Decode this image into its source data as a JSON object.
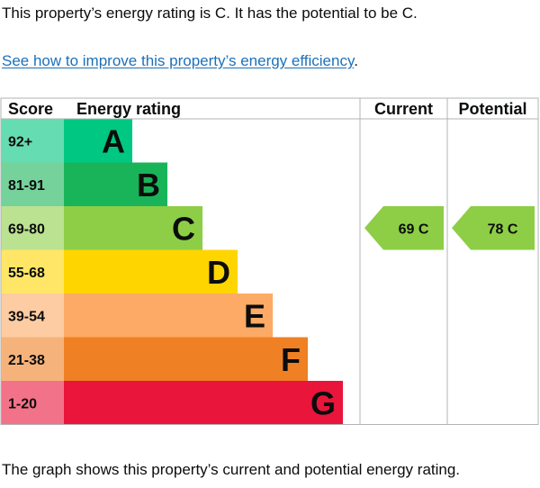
{
  "intro_text": "This property’s energy rating is C. It has the potential to be C.",
  "link": {
    "text": "See how to improve this property’s energy efficiency",
    "suffix": "."
  },
  "caption": "The graph shows this property’s current and potential energy rating.",
  "chart_data": {
    "type": "bar",
    "title": "Energy rating",
    "headers": {
      "score": "Score",
      "rating": "Energy rating",
      "current": "Current",
      "potential": "Potential"
    },
    "bands": [
      {
        "score": "92+",
        "letter": "A",
        "color": "#00c781",
        "score_bg": "#66dcb3"
      },
      {
        "score": "81-91",
        "letter": "B",
        "color": "#19b459",
        "score_bg": "#75d29b"
      },
      {
        "score": "69-80",
        "letter": "C",
        "color": "#8dce46",
        "score_bg": "#bbe290"
      },
      {
        "score": "55-68",
        "letter": "D",
        "color": "#ffd500",
        "score_bg": "#ffe666"
      },
      {
        "score": "39-54",
        "letter": "E",
        "color": "#fcaa65",
        "score_bg": "#fdcca3"
      },
      {
        "score": "21-38",
        "letter": "F",
        "color": "#ef8023",
        "score_bg": "#f5b37b"
      },
      {
        "score": "1-20",
        "letter": "G",
        "color": "#e9153b",
        "score_bg": "#f27389"
      }
    ],
    "current": {
      "value": 69,
      "band": "C",
      "label": "69 C",
      "color": "#8dce46"
    },
    "potential": {
      "value": 78,
      "band": "C",
      "label": "78 C",
      "color": "#8dce46"
    }
  }
}
